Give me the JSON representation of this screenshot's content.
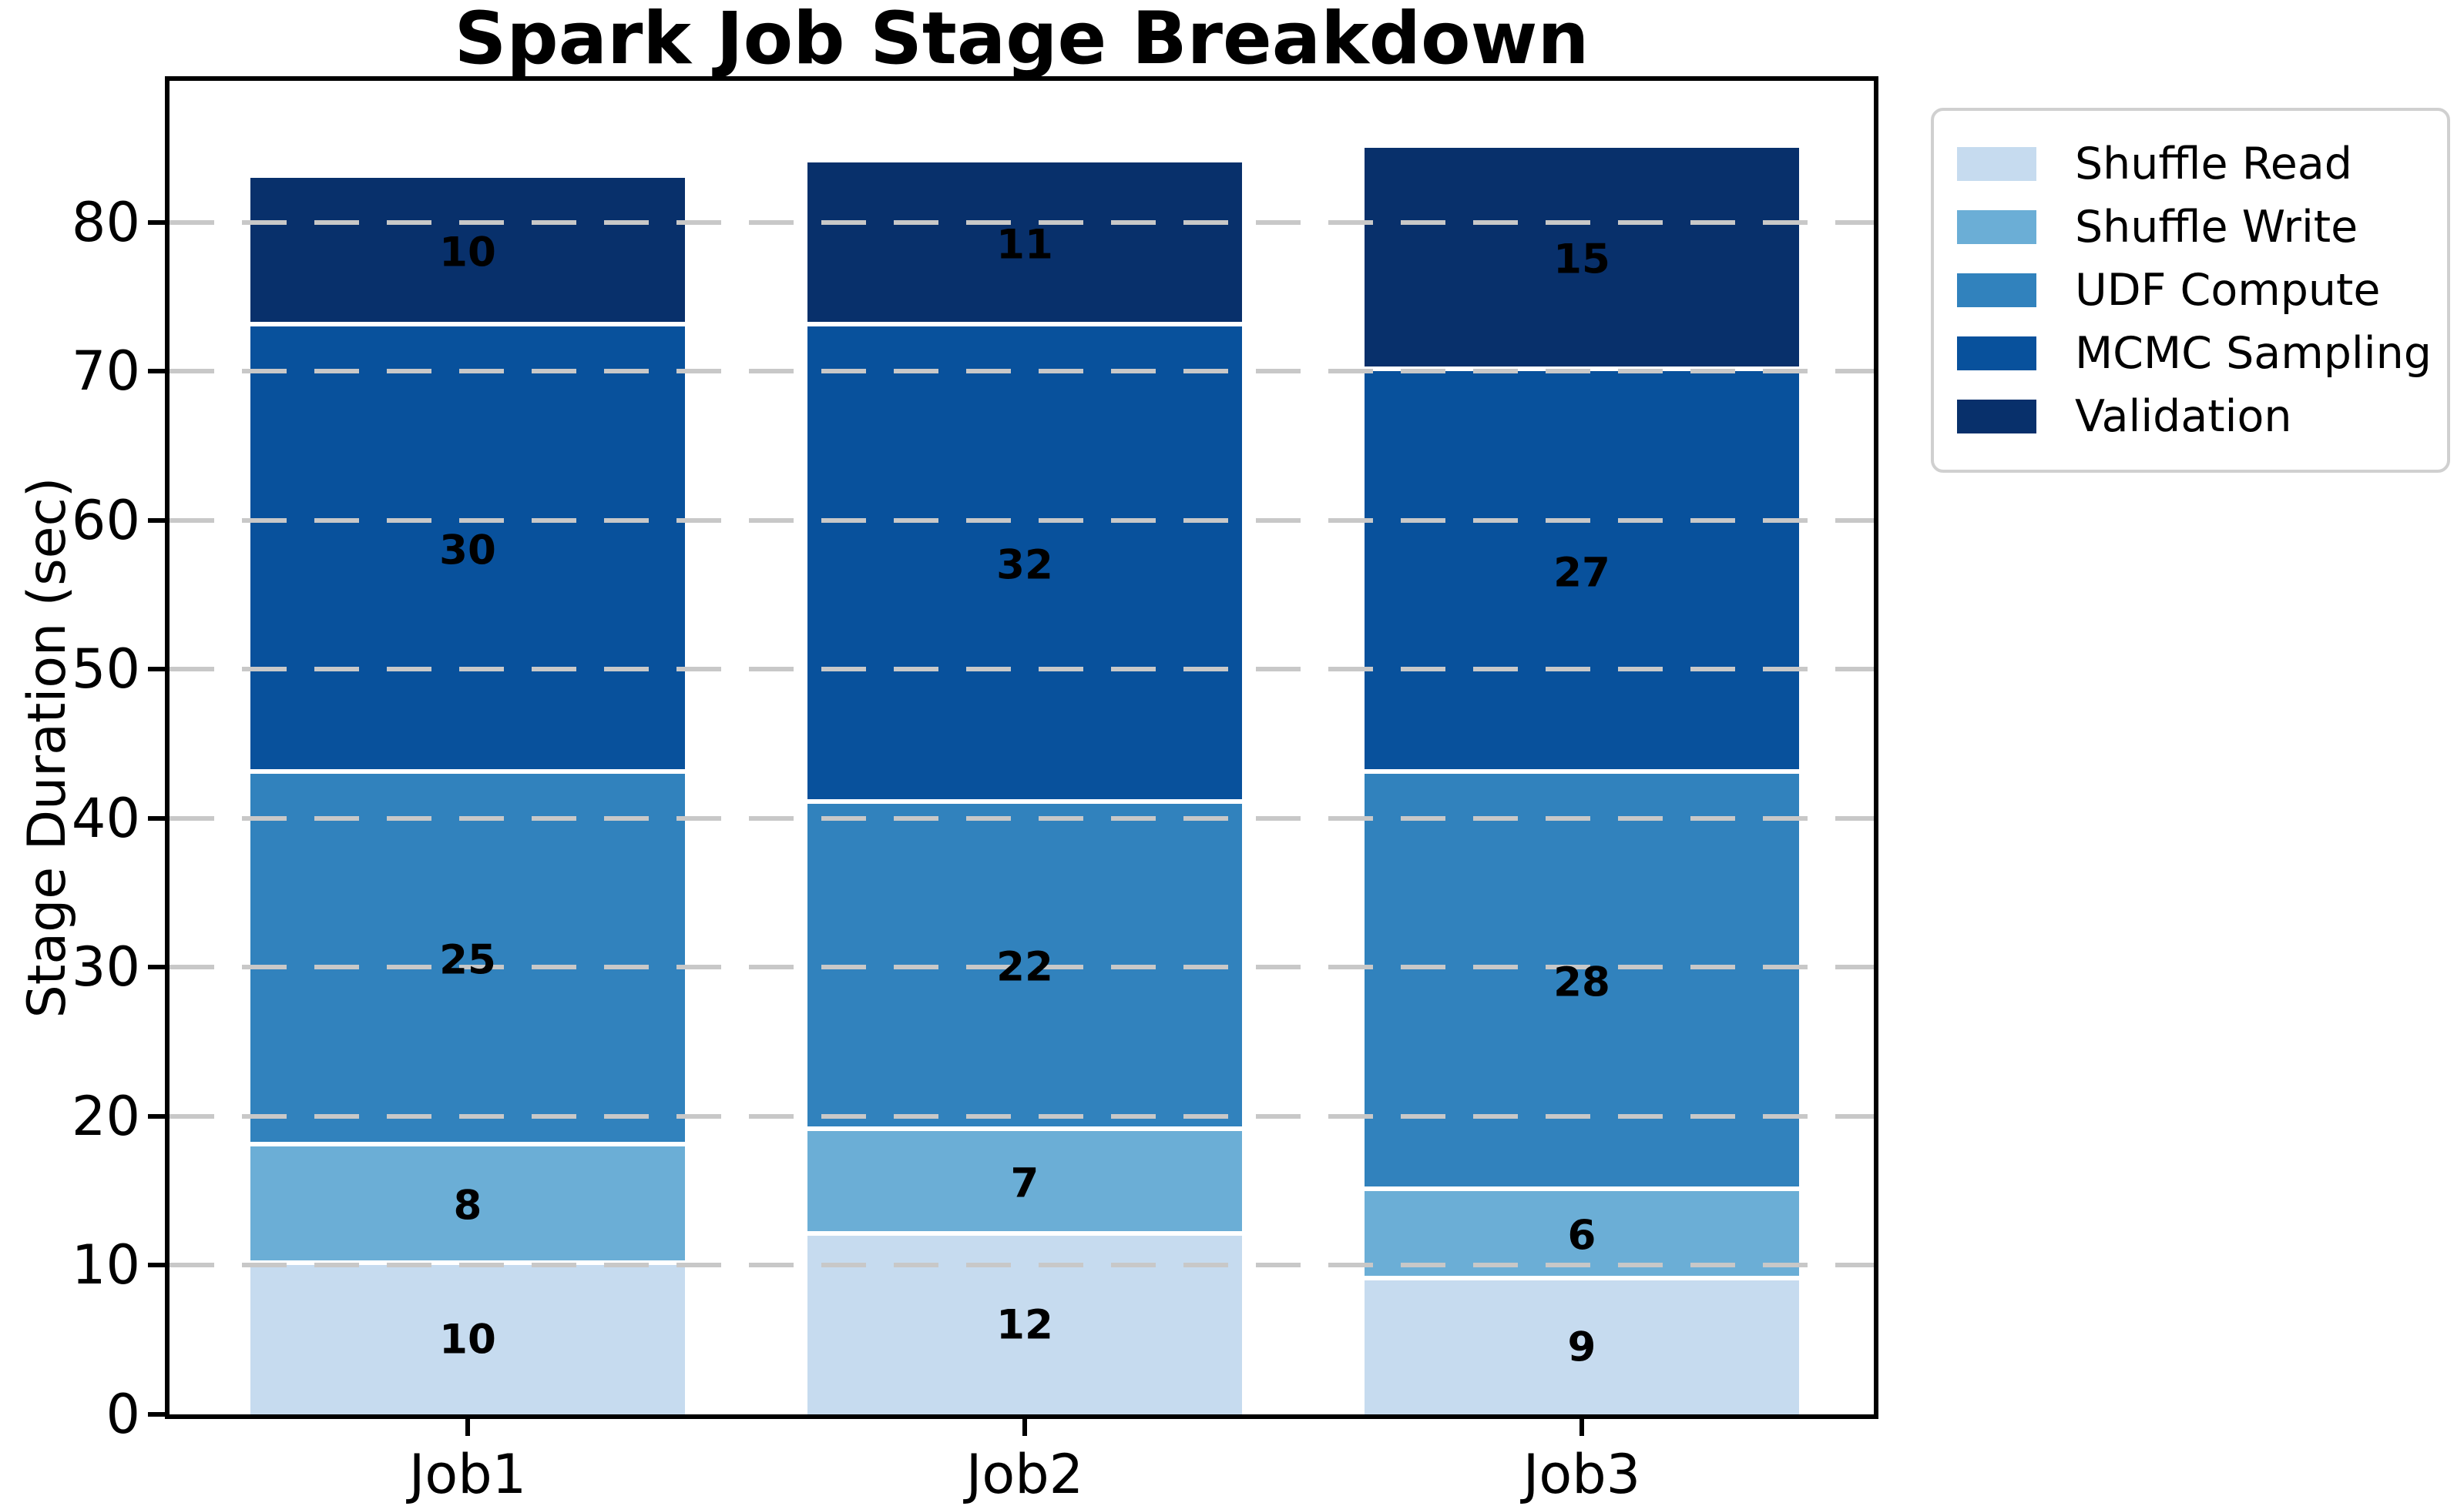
{
  "chart_data": {
    "type": "bar",
    "stacked": true,
    "title": "Spark Job Stage Breakdown",
    "ylabel": "Stage Duration (sec)",
    "xlabel": "",
    "categories": [
      "Job1",
      "Job2",
      "Job3"
    ],
    "series": [
      {
        "name": "Shuffle Read",
        "color": "#c6dbef",
        "values": [
          10,
          12,
          9
        ]
      },
      {
        "name": "Shuffle Write",
        "color": "#6baed6",
        "values": [
          8,
          7,
          6
        ]
      },
      {
        "name": "UDF Compute",
        "color": "#3182bd",
        "values": [
          25,
          22,
          28
        ]
      },
      {
        "name": "MCMC Sampling",
        "color": "#08519c",
        "values": [
          30,
          32,
          27
        ]
      },
      {
        "name": "Validation",
        "color": "#08306b",
        "values": [
          10,
          11,
          15
        ]
      }
    ],
    "stack_totals": [
      83,
      84,
      85
    ],
    "yticks": [
      0,
      10,
      20,
      30,
      40,
      50,
      60,
      70,
      80
    ],
    "ylim": [
      0,
      89.5
    ],
    "grid": {
      "axis": "y",
      "style": "dashed",
      "color": "#c8c8c8",
      "above_bars": true
    },
    "bar_value_labels": true,
    "legend": {
      "position": "outside-upper-right",
      "border_color": "#d0d0d0"
    },
    "colors": {
      "background": "#ffffff",
      "spines": "#000000",
      "text": "#000000",
      "segment_separator": "#ffffff"
    }
  }
}
